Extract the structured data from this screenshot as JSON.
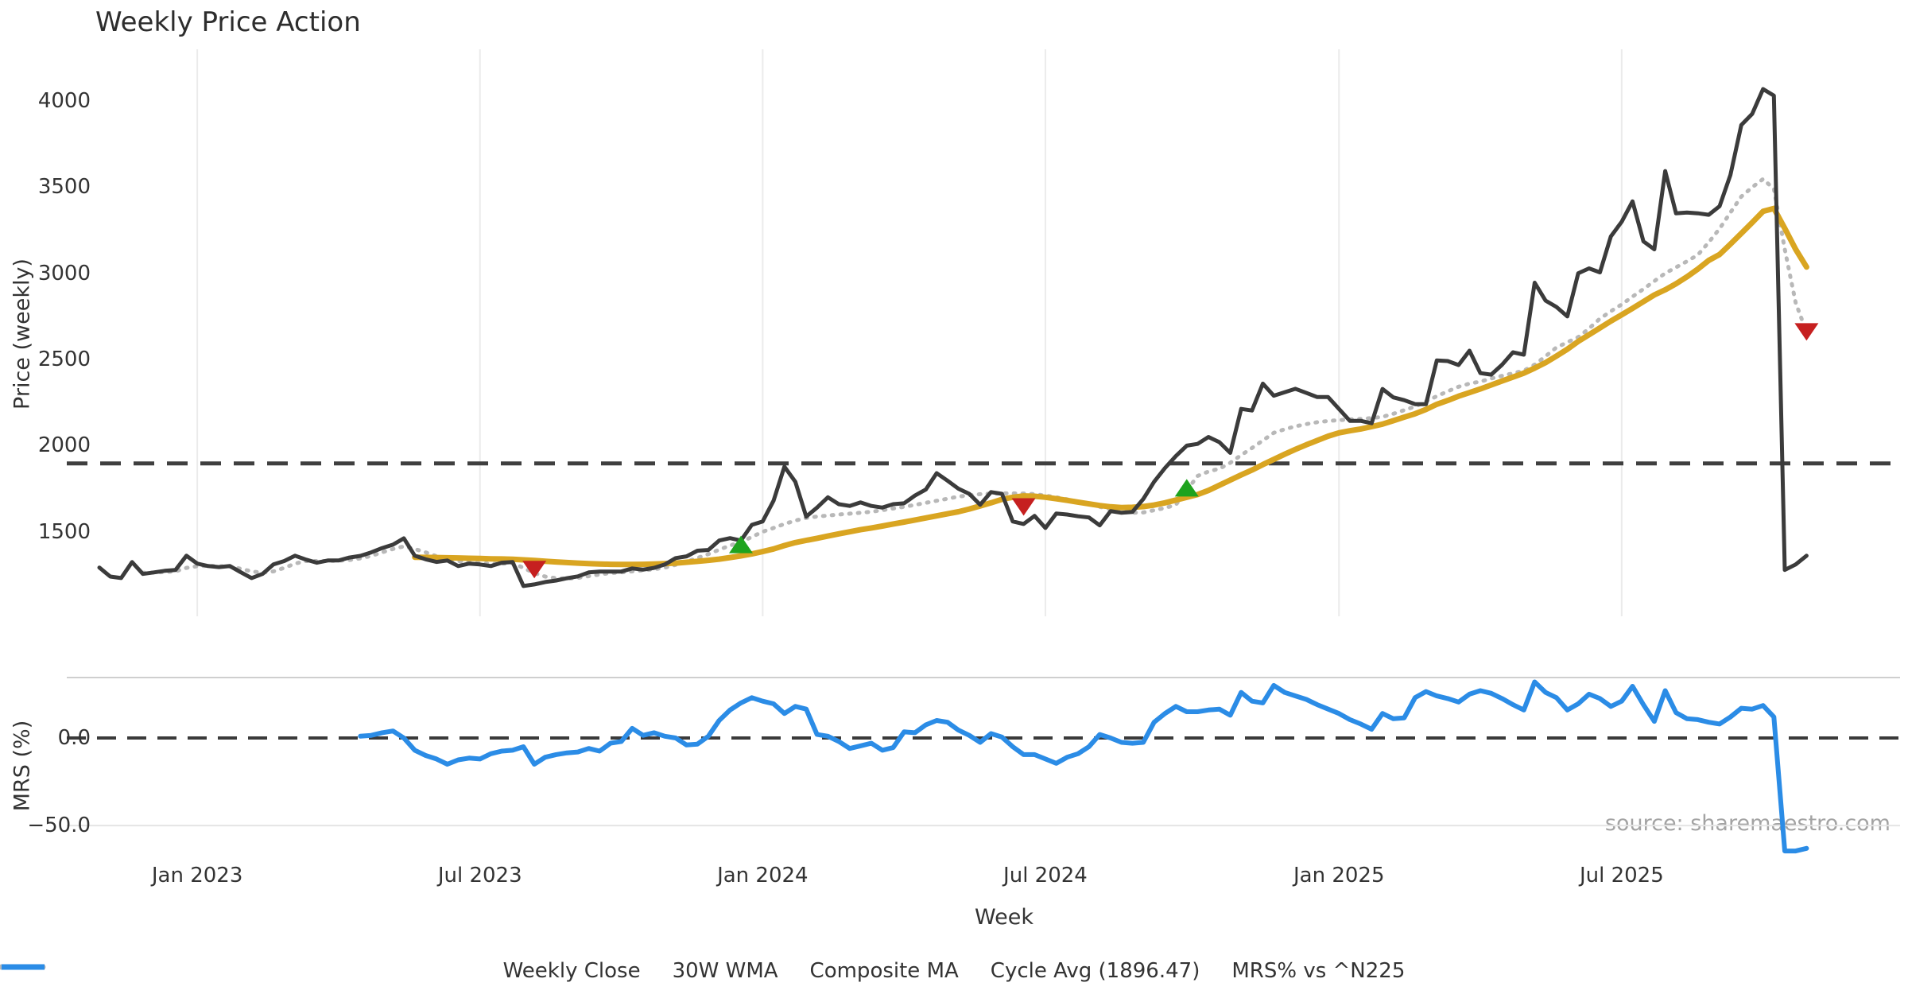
{
  "title": "Weekly Price Action",
  "xlabel": "Week",
  "source": "source: sharemaestro.com",
  "panels": {
    "price": {
      "ylabel": "Price (weekly)"
    },
    "mrs": {
      "ylabel": "MRS (%)"
    }
  },
  "legend": [
    {
      "label": "Weekly Close",
      "color": "#3b3b3b",
      "style": "solid"
    },
    {
      "label": "30W WMA",
      "color": "#d9a521",
      "style": "solid"
    },
    {
      "label": "Composite MA",
      "color": "#b8b8b8",
      "style": "dotted"
    },
    {
      "label": "Cycle Avg (1896.47)",
      "color": "#3f3f3f",
      "style": "dashed"
    },
    {
      "label": "MRS% vs ^N225",
      "color": "#2b8ce6",
      "style": "solid"
    }
  ],
  "chart_data": [
    {
      "type": "line",
      "panel": "price",
      "title": "Weekly Price Action",
      "xlabel": "Week",
      "ylabel": "Price (weekly)",
      "x_unit": "week_index_from_2022-11-07",
      "xlim": [
        -3,
        165.6
      ],
      "ylim": [
        1009,
        4301
      ],
      "yticks": [
        1500,
        2000,
        2500,
        3000,
        3500,
        4000
      ],
      "xticks": [
        {
          "week": 9,
          "label": "Jan 2023"
        },
        {
          "week": 35,
          "label": "Jul 2023"
        },
        {
          "week": 61,
          "label": "Jan 2024"
        },
        {
          "week": 87,
          "label": "Jul 2024"
        },
        {
          "week": 114,
          "label": "Jan 2025"
        },
        {
          "week": 140,
          "label": "Jul 2025"
        }
      ],
      "grid": "vertical-only",
      "hline": {
        "label": "Cycle Avg",
        "value": 1896.47,
        "style": "dashed",
        "color": "#3f3f3f"
      },
      "series": [
        {
          "name": "Weekly Close",
          "color": "#3b3b3b",
          "style": "solid",
          "width": 5,
          "start_week": 0,
          "values": [
            1292,
            1240,
            1231,
            1324,
            1255,
            1264,
            1273,
            1278,
            1361,
            1315,
            1301,
            1295,
            1301,
            1265,
            1231,
            1255,
            1310,
            1330,
            1361,
            1338,
            1320,
            1333,
            1333,
            1350,
            1360,
            1380,
            1405,
            1425,
            1462,
            1361,
            1340,
            1325,
            1333,
            1301,
            1315,
            1310,
            1301,
            1320,
            1324,
            1185,
            1194,
            1208,
            1217,
            1230,
            1241,
            1264,
            1269,
            1269,
            1269,
            1287,
            1280,
            1290,
            1310,
            1347,
            1357,
            1390,
            1394,
            1449,
            1463,
            1449,
            1540,
            1560,
            1680,
            1878,
            1790,
            1588,
            1640,
            1700,
            1660,
            1650,
            1670,
            1650,
            1640,
            1660,
            1665,
            1710,
            1745,
            1840,
            1796,
            1750,
            1720,
            1657,
            1730,
            1720,
            1560,
            1545,
            1592,
            1522,
            1606,
            1600,
            1590,
            1583,
            1537,
            1620,
            1610,
            1615,
            1690,
            1790,
            1870,
            1940,
            2000,
            2010,
            2050,
            2020,
            1958,
            2213,
            2204,
            2360,
            2290,
            2310,
            2330,
            2306,
            2282,
            2282,
            2213,
            2144,
            2144,
            2130,
            2329,
            2280,
            2264,
            2241,
            2241,
            2495,
            2491,
            2468,
            2551,
            2421,
            2412,
            2470,
            2542,
            2528,
            2946,
            2842,
            2805,
            2750,
            3001,
            3029,
            3006,
            3214,
            3300,
            3418,
            3186,
            3140,
            3594,
            3349,
            3353,
            3349,
            3340,
            3390,
            3571,
            3861,
            3926,
            4070,
            4032,
            1278,
            1310,
            1361
          ]
        },
        {
          "name": "30W WMA",
          "color": "#d9a521",
          "style": "solid",
          "width": 7,
          "start_week": 29,
          "values": [
            1352,
            1351,
            1350,
            1349,
            1348,
            1346,
            1345,
            1343,
            1342,
            1340,
            1337,
            1333,
            1329,
            1325,
            1321,
            1318,
            1315,
            1313,
            1311,
            1310,
            1310,
            1311,
            1313,
            1315,
            1318,
            1323,
            1328,
            1334,
            1341,
            1350,
            1360,
            1371,
            1385,
            1400,
            1420,
            1437,
            1450,
            1462,
            1475,
            1488,
            1500,
            1512,
            1522,
            1533,
            1545,
            1556,
            1568,
            1580,
            1592,
            1604,
            1616,
            1632,
            1650,
            1668,
            1688,
            1700,
            1708,
            1706,
            1700,
            1692,
            1682,
            1672,
            1662,
            1652,
            1645,
            1640,
            1642,
            1646,
            1655,
            1668,
            1684,
            1700,
            1716,
            1740,
            1770,
            1800,
            1830,
            1858,
            1890,
            1920,
            1950,
            1978,
            2005,
            2030,
            2055,
            2074,
            2086,
            2097,
            2110,
            2125,
            2145,
            2165,
            2185,
            2210,
            2240,
            2262,
            2287,
            2308,
            2329,
            2352,
            2375,
            2398,
            2421,
            2450,
            2482,
            2520,
            2560,
            2605,
            2644,
            2683,
            2723,
            2760,
            2797,
            2836,
            2875,
            2905,
            2940,
            2980,
            3025,
            3075,
            3110,
            3170,
            3232,
            3295,
            3360,
            3377,
            3261,
            3140,
            3037
          ]
        },
        {
          "name": "Composite MA",
          "color": "#b8b8b8",
          "style": "dotted",
          "width": 5,
          "start_week": 4,
          "values": [
            1262,
            1263,
            1266,
            1270,
            1290,
            1300,
            1302,
            1300,
            1298,
            1285,
            1270,
            1262,
            1270,
            1290,
            1315,
            1330,
            1330,
            1330,
            1332,
            1336,
            1345,
            1360,
            1380,
            1400,
            1415,
            1400,
            1380,
            1358,
            1345,
            1330,
            1322,
            1318,
            1314,
            1314,
            1318,
            1290,
            1260,
            1240,
            1230,
            1228,
            1232,
            1242,
            1252,
            1260,
            1264,
            1270,
            1276,
            1282,
            1292,
            1308,
            1326,
            1348,
            1370,
            1396,
            1420,
            1440,
            1470,
            1500,
            1522,
            1545,
            1565,
            1580,
            1588,
            1594,
            1600,
            1605,
            1610,
            1616,
            1625,
            1635,
            1645,
            1656,
            1668,
            1680,
            1692,
            1704,
            1712,
            1718,
            1722,
            1723,
            1723,
            1722,
            1718,
            1710,
            1700,
            1688,
            1675,
            1660,
            1645,
            1632,
            1616,
            1610,
            1612,
            1625,
            1638,
            1657,
            1740,
            1824,
            1850,
            1866,
            1900,
            1945,
            1986,
            2030,
            2074,
            2095,
            2112,
            2125,
            2136,
            2143,
            2148,
            2152,
            2155,
            2160,
            2167,
            2185,
            2206,
            2227,
            2257,
            2287,
            2315,
            2342,
            2360,
            2372,
            2390,
            2405,
            2420,
            2435,
            2470,
            2519,
            2570,
            2600,
            2630,
            2680,
            2737,
            2780,
            2820,
            2865,
            2909,
            2955,
            3001,
            3035,
            3070,
            3107,
            3180,
            3260,
            3353,
            3446,
            3500,
            3548,
            3490,
            3140,
            2830,
            2658
          ]
        }
      ],
      "signals": {
        "buy": [
          {
            "week": 59,
            "price": 1426
          },
          {
            "week": 100,
            "price": 1755
          }
        ],
        "sell": [
          {
            "week": 40,
            "price": 1280
          },
          {
            "week": 85,
            "price": 1644
          },
          {
            "week": 157,
            "price": 2660
          }
        ],
        "buy_color": "#1ea31e",
        "sell_color": "#c62020"
      }
    },
    {
      "type": "line",
      "panel": "mrs",
      "ylabel": "MRS (%)",
      "x_unit": "week_index_from_2022-11-07",
      "xlim": [
        -3,
        165.6
      ],
      "ylim": [
        -69,
        34.5
      ],
      "yticks": [
        0.0,
        -50.0
      ],
      "ytick_labels": [
        "0.0",
        "−50.0"
      ],
      "grid": "horizontal-light",
      "hline": {
        "label": "zero",
        "value": 0,
        "style": "dashed",
        "color": "#3a3a3a"
      },
      "border_lines": [
        34.5,
        -50
      ],
      "series": [
        {
          "name": "MRS% vs ^N225",
          "color": "#2b8ce6",
          "style": "solid",
          "width": 6,
          "start_week": 24,
          "values": [
            1,
            1.5,
            3,
            4,
            0,
            -7,
            -10,
            -12,
            -15,
            -12.5,
            -11.5,
            -12,
            -9,
            -7.5,
            -7,
            -5,
            -15,
            -11,
            -9.5,
            -8.5,
            -8,
            -6,
            -7.5,
            -3,
            -2,
            5.5,
            1.5,
            3,
            1,
            0,
            -4,
            -3.5,
            1,
            10,
            16,
            20,
            23,
            21,
            19.5,
            14,
            18,
            16.5,
            2,
            1,
            -2,
            -6,
            -4.5,
            -3,
            -7,
            -5.5,
            3.5,
            3,
            7.5,
            10,
            9,
            4.5,
            1.5,
            -2.5,
            2.5,
            0.5,
            -5,
            -9.5,
            -9.5,
            -12,
            -14.5,
            -11,
            -9,
            -5,
            2,
            0,
            -2.5,
            -3,
            -2.5,
            9,
            14,
            18,
            15,
            15,
            16,
            16.5,
            13,
            26,
            21,
            20,
            30,
            26,
            24,
            22,
            19,
            16.5,
            14,
            10.5,
            8,
            5,
            14,
            11,
            11.5,
            23,
            26.5,
            24,
            22.5,
            20.5,
            25,
            27,
            25.5,
            22.5,
            19,
            16,
            32,
            26,
            23,
            16,
            19.5,
            25,
            22.5,
            18,
            21,
            29.5,
            19,
            9.5,
            27,
            14.5,
            11,
            10.5,
            9,
            8,
            12,
            17,
            16.5,
            18.5,
            12,
            -64.5,
            -64.5,
            -63
          ]
        }
      ]
    }
  ]
}
